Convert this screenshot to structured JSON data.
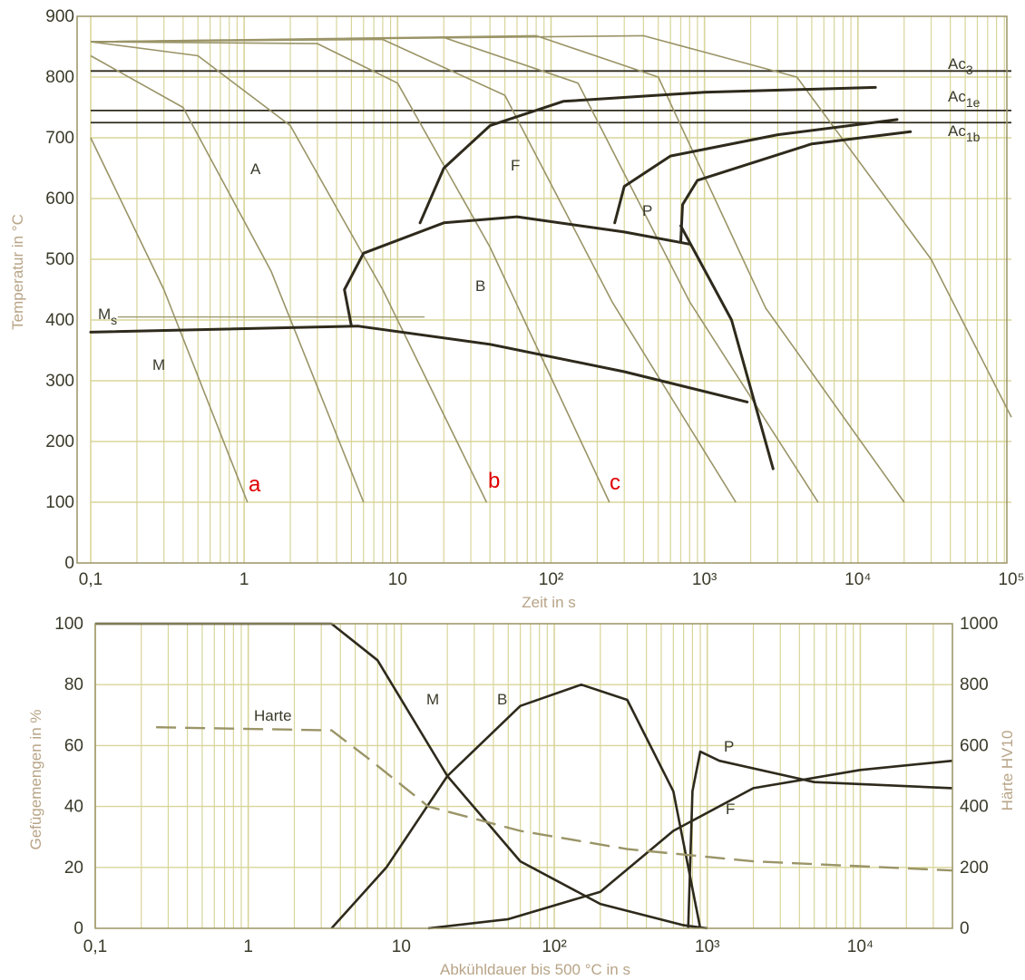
{
  "colors": {
    "grid": "#d8d59a",
    "thin_curve": "#9a9467",
    "thick_curve": "#2e2a1c",
    "label": "#3a3a2a",
    "axis_label": "#b8a487",
    "marker": "#e00000"
  },
  "chart_data": [
    {
      "type": "line",
      "xlabel": "Zeit in s",
      "ylabel": "Temperatur in °C",
      "xscale": "log",
      "xlim": [
        0.1,
        100000
      ],
      "ylim": [
        0,
        900
      ],
      "grid": true,
      "x_tick_labels": [
        "0,1",
        "1",
        "10",
        "10²",
        "10³",
        "10⁴",
        "10⁵"
      ],
      "y_tick_labels": [
        "0",
        "100",
        "200",
        "300",
        "400",
        "500",
        "600",
        "700",
        "800",
        "900"
      ],
      "reference_lines": [
        {
          "label": "Ac3",
          "y": 810
        },
        {
          "label": "Ac1e",
          "y": 745
        },
        {
          "label": "Ac1b",
          "y": 725
        },
        {
          "label": "Ms",
          "y": 385
        }
      ],
      "region_labels": [
        "A",
        "F",
        "P",
        "B",
        "M"
      ],
      "curve_markers": [
        "a",
        "b",
        "c"
      ],
      "cooling_curves": [
        {
          "points": [
            [
              0.1,
              700
            ],
            [
              0.3,
              450
            ],
            [
              1.05,
              100
            ]
          ]
        },
        {
          "points": [
            [
              0.1,
              835
            ],
            [
              0.4,
              750
            ],
            [
              1.5,
              480
            ],
            [
              6,
              100
            ]
          ]
        },
        {
          "points": [
            [
              0.1,
              858
            ],
            [
              0.5,
              835
            ],
            [
              2,
              720
            ],
            [
              8,
              450
            ],
            [
              38,
              100
            ]
          ]
        },
        {
          "points": [
            [
              0.1,
              858
            ],
            [
              3,
              855
            ],
            [
              10,
              790
            ],
            [
              40,
              520
            ],
            [
              240,
              100
            ]
          ]
        },
        {
          "points": [
            [
              0.1,
              858
            ],
            [
              8,
              862
            ],
            [
              50,
              770
            ],
            [
              250,
              430
            ],
            [
              1600,
              100
            ]
          ]
        },
        {
          "points": [
            [
              0.1,
              858
            ],
            [
              20,
              865
            ],
            [
              150,
              790
            ],
            [
              800,
              430
            ],
            [
              5500,
              100
            ]
          ]
        },
        {
          "points": [
            [
              0.1,
              858
            ],
            [
              80,
              868
            ],
            [
              500,
              800
            ],
            [
              2500,
              420
            ],
            [
              20000,
              100
            ]
          ]
        },
        {
          "points": [
            [
              0.1,
              858
            ],
            [
              400,
              868
            ],
            [
              4000,
              800
            ],
            [
              30000,
              500
            ],
            [
              100000,
              240
            ]
          ]
        }
      ],
      "transformation_lines": [
        {
          "name": "ferrite-start",
          "points": [
            [
              14,
              560
            ],
            [
              20,
              650
            ],
            [
              40,
              720
            ],
            [
              120,
              760
            ],
            [
              1000,
              775
            ],
            [
              13000,
              783
            ]
          ]
        },
        {
          "name": "pearlite-start",
          "points": [
            [
              260,
              560
            ],
            [
              300,
              620
            ],
            [
              600,
              670
            ],
            [
              3000,
              705
            ],
            [
              18000,
              730
            ]
          ]
        },
        {
          "name": "pearlite-end",
          "points": [
            [
              700,
              530
            ],
            [
              720,
              590
            ],
            [
              900,
              630
            ],
            [
              5000,
              690
            ],
            [
              22000,
              710
            ]
          ]
        },
        {
          "name": "bainite-start",
          "points": [
            [
              5,
              390
            ],
            [
              4.5,
              450
            ],
            [
              6,
              510
            ],
            [
              20,
              560
            ],
            [
              60,
              570
            ],
            [
              300,
              545
            ],
            [
              800,
              525
            ]
          ]
        },
        {
          "name": "bainite-end",
          "points": [
            [
              5.5,
              390
            ],
            [
              40,
              360
            ],
            [
              300,
              315
            ],
            [
              1900,
              265
            ]
          ]
        },
        {
          "name": "ms-line",
          "points": [
            [
              0.1,
              380
            ],
            [
              5.5,
              390
            ]
          ]
        },
        {
          "name": "pearlite-boundary",
          "points": [
            [
              700,
              555
            ],
            [
              1500,
              400
            ],
            [
              2800,
              155
            ]
          ]
        }
      ]
    },
    {
      "type": "line",
      "xlabel": "Abkühldauer bis 500 °C in s",
      "ylabel": "Gefügemengen in %",
      "y2label": "Härte HV10",
      "xscale": "log",
      "xlim": [
        0.1,
        40000
      ],
      "ylim": [
        0,
        100
      ],
      "y2lim": [
        0,
        1000
      ],
      "grid": true,
      "x_tick_labels": [
        "0,1",
        "1",
        "10",
        "10²",
        "10³",
        "10⁴"
      ],
      "y_tick_labels": [
        "0",
        "20",
        "40",
        "60",
        "80",
        "100"
      ],
      "y2_tick_labels": [
        "0",
        "200",
        "400",
        "600",
        "800",
        "1000"
      ],
      "series": [
        {
          "name": "M",
          "points": [
            [
              0.1,
              100
            ],
            [
              3.5,
              100
            ],
            [
              7,
              88
            ],
            [
              20,
              50
            ],
            [
              60,
              22
            ],
            [
              200,
              8
            ],
            [
              700,
              1
            ],
            [
              1000,
              0
            ]
          ]
        },
        {
          "name": "B",
          "points": [
            [
              3.5,
              0
            ],
            [
              8,
              20
            ],
            [
              20,
              50
            ],
            [
              60,
              73
            ],
            [
              150,
              80
            ],
            [
              300,
              75
            ],
            [
              600,
              45
            ],
            [
              900,
              0
            ]
          ]
        },
        {
          "name": "P",
          "points": [
            [
              750,
              0
            ],
            [
              800,
              45
            ],
            [
              900,
              58
            ],
            [
              1200,
              55
            ],
            [
              5000,
              48
            ],
            [
              40000,
              46
            ]
          ]
        },
        {
          "name": "F",
          "points": [
            [
              15,
              0
            ],
            [
              50,
              3
            ],
            [
              200,
              12
            ],
            [
              600,
              32
            ],
            [
              2000,
              46
            ],
            [
              10000,
              52
            ],
            [
              40000,
              55
            ]
          ]
        },
        {
          "name": "Harte",
          "dashed": true,
          "axis": "right",
          "points": [
            [
              0.25,
              660
            ],
            [
              3.5,
              650
            ],
            [
              6,
              560
            ],
            [
              15,
              400
            ],
            [
              60,
              320
            ],
            [
              300,
              260
            ],
            [
              2000,
              220
            ],
            [
              40000,
              190
            ]
          ]
        }
      ],
      "curve_labels": [
        "M",
        "B",
        "P",
        "F",
        "Harte"
      ]
    }
  ]
}
